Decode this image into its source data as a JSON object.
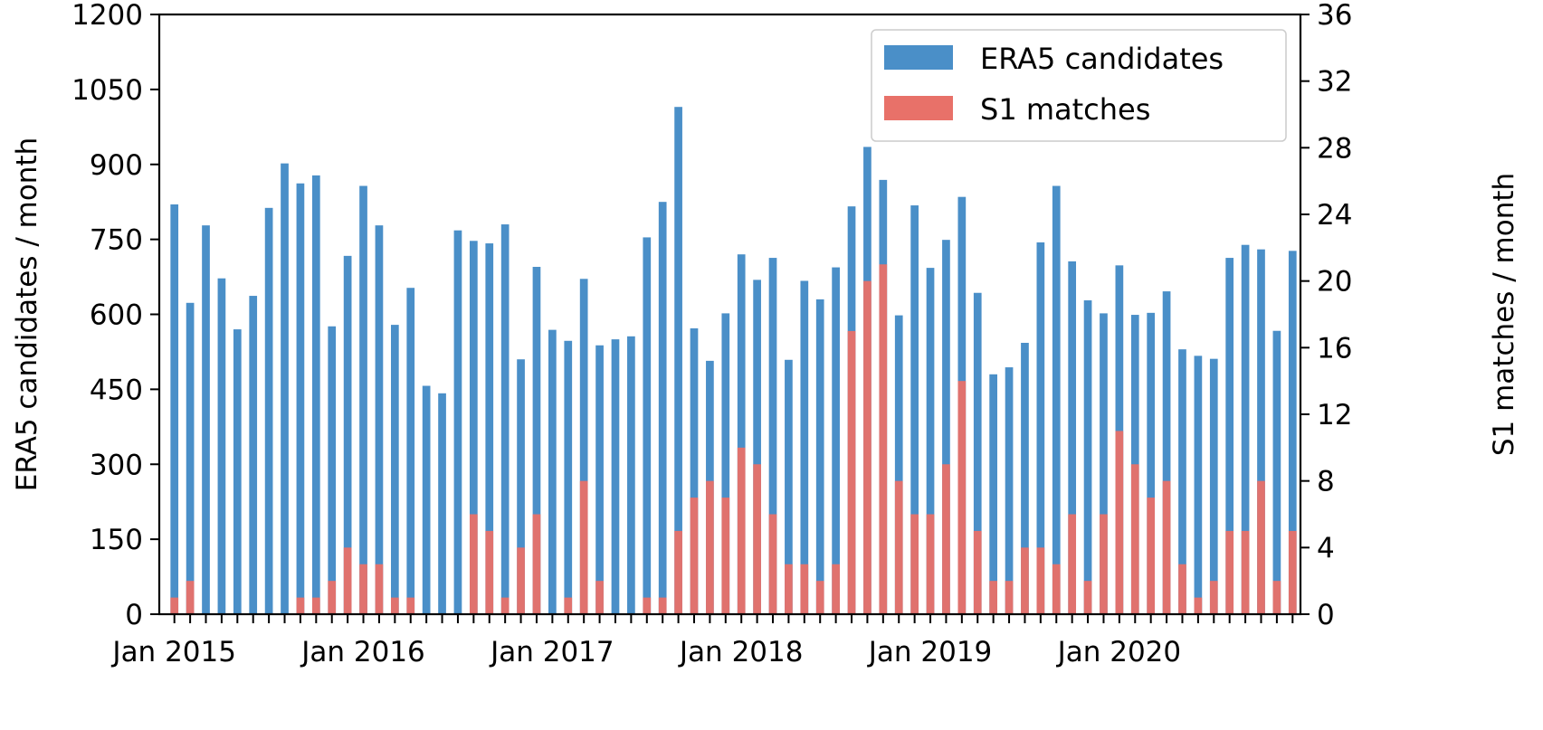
{
  "chart_data": {
    "type": "bar",
    "x_tick_labels": [
      "Jan 2015",
      "Jan 2016",
      "Jan 2017",
      "Jan 2018",
      "Jan 2019",
      "Jan 2020"
    ],
    "x_tick_positions": [
      0,
      12,
      24,
      36,
      48,
      60
    ],
    "ylabel": "ERA5 candidates / month",
    "y2label": "S1 matches / month",
    "ylim": [
      0,
      1200
    ],
    "y_ticks": [
      0,
      150,
      300,
      450,
      600,
      750,
      900,
      1050,
      1200
    ],
    "y2lim": [
      0,
      36
    ],
    "y2_ticks": [
      0,
      4,
      8,
      12,
      16,
      20,
      24,
      28,
      32,
      36
    ],
    "legend_position": "top-right",
    "series": [
      {
        "name": "ERA5 candidates",
        "axis": "left",
        "color": "#4a8fc8",
        "values": [
          820,
          623,
          778,
          672,
          570,
          637,
          813,
          902,
          862,
          878,
          576,
          717,
          857,
          778,
          579,
          653,
          457,
          442,
          768,
          747,
          742,
          780,
          510,
          695,
          569,
          547,
          671,
          538,
          550,
          556,
          754,
          825,
          1015,
          572,
          507,
          602,
          720,
          669,
          713,
          509,
          667,
          630,
          694,
          816,
          935,
          869,
          598,
          818,
          693,
          749,
          835,
          643,
          480,
          494,
          543,
          744,
          857,
          706,
          628,
          602,
          698,
          599,
          603,
          646,
          530,
          517,
          511,
          713,
          739,
          730,
          567,
          727
        ]
      },
      {
        "name": "S1 matches",
        "axis": "right",
        "color": "#e87169",
        "values": [
          1,
          2,
          0,
          0,
          0,
          0,
          0,
          0,
          1,
          1,
          2,
          4,
          3,
          3,
          1,
          1,
          0,
          0,
          0,
          6,
          5,
          1,
          4,
          6,
          0,
          1,
          8,
          2,
          0,
          0,
          1,
          1,
          5,
          7,
          8,
          7,
          10,
          9,
          6,
          3,
          3,
          2,
          3,
          17,
          20,
          21,
          8,
          6,
          6,
          9,
          14,
          5,
          2,
          2,
          4,
          4,
          3,
          6,
          2,
          6,
          11,
          9,
          7,
          8,
          3,
          1,
          2,
          5,
          5,
          8,
          2,
          5
        ]
      }
    ]
  }
}
